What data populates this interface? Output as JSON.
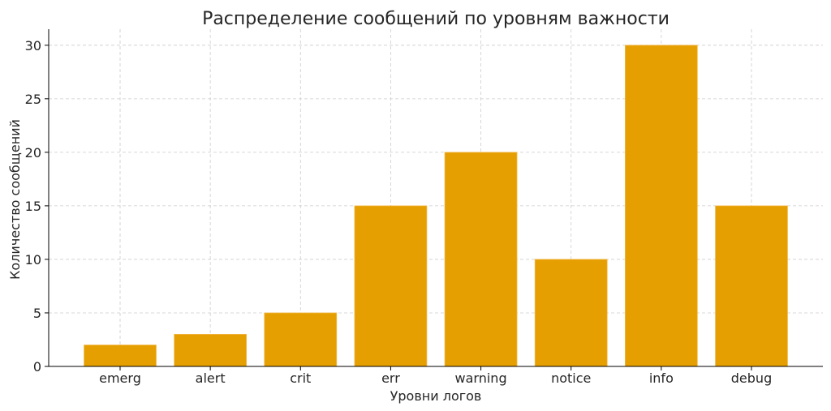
{
  "chart_data": {
    "type": "bar",
    "title": "Распределение сообщений по уровням важности",
    "xlabel": "Уровни логов",
    "ylabel": "Количество сообщений",
    "categories": [
      "emerg",
      "alert",
      "crit",
      "err",
      "warning",
      "notice",
      "info",
      "debug"
    ],
    "values": [
      2,
      3,
      5,
      15,
      20,
      10,
      30,
      15
    ],
    "ylim": [
      0,
      31.5
    ],
    "yticks": [
      0,
      5,
      10,
      15,
      20,
      25,
      30
    ],
    "grid": true,
    "bar_color": "#E69F00",
    "bar_edge_color": "#F2B84A"
  }
}
